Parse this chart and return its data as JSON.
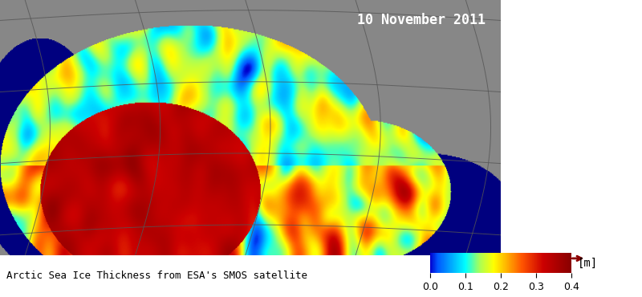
{
  "title_date": "10 November 2011",
  "caption": "Arctic Sea Ice Thickness from ESA's SMOS satellite",
  "colorbar_label": "[m]",
  "colorbar_ticks": [
    0.0,
    0.1,
    0.2,
    0.3,
    0.4
  ],
  "colorbar_ticklabels": [
    "0.0",
    "0.1",
    "0.2",
    "0.3",
    "0.4"
  ],
  "colorbar_vmin": 0.0,
  "colorbar_vmax": 0.4,
  "map_bg_color": "#888888",
  "fig_bg_color": "#ffffff",
  "border_color": "#222222",
  "date_color": "#ffffff",
  "caption_color": "#000000",
  "figsize": [
    8.0,
    3.7
  ],
  "dpi": 100
}
